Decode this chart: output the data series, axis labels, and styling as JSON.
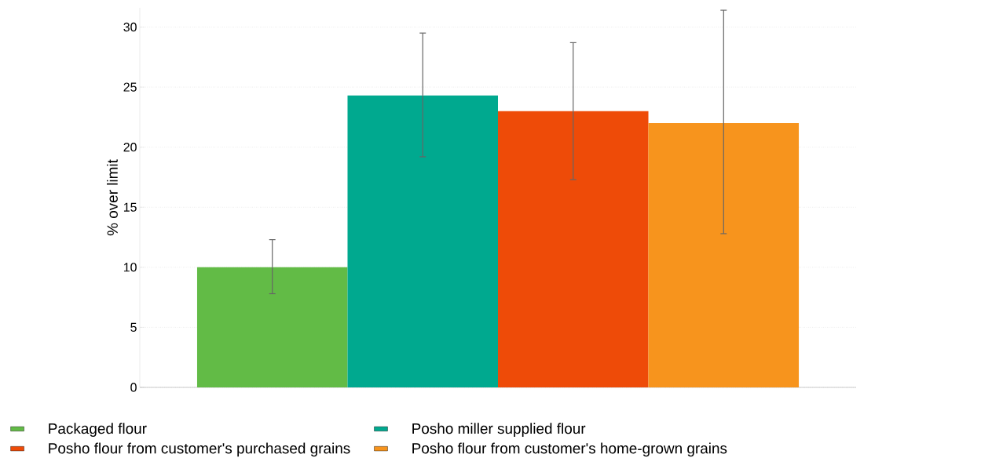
{
  "chart_data": {
    "type": "bar",
    "ylabel": "% over limit",
    "categories": [
      null
    ],
    "series": [
      {
        "name": "Packaged flour",
        "color": "#62bb46",
        "values": [
          10.0
        ],
        "errors": [
          [
            7.8,
            12.3
          ]
        ]
      },
      {
        "name": "Posho miller supplied flour",
        "color": "#00a98f",
        "values": [
          24.3
        ],
        "errors": [
          [
            19.2,
            29.5
          ]
        ]
      },
      {
        "name": "Posho flour from customer's purchased grains",
        "color": "#ee4b08",
        "values": [
          23.0
        ],
        "errors": [
          [
            17.3,
            28.7
          ]
        ]
      },
      {
        "name": "Posho flour from customer's home-grown grains",
        "color": "#f7941d",
        "values": [
          22.0
        ],
        "errors": [
          [
            12.8,
            31.4
          ]
        ]
      }
    ],
    "ylim": [
      0,
      31.6
    ],
    "yticks": [
      0,
      5,
      10,
      15,
      20,
      25,
      30
    ],
    "grid": "y",
    "legend": "bottom"
  }
}
